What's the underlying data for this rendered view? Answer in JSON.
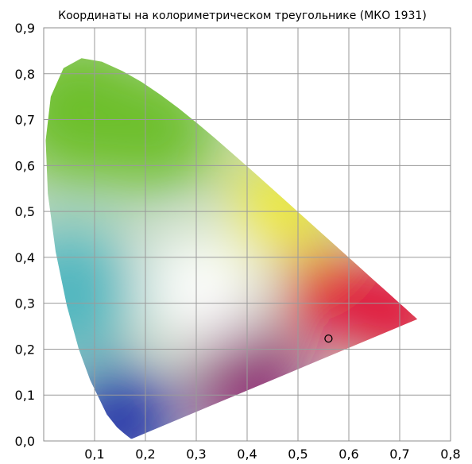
{
  "chart_data": {
    "type": "scatter",
    "title": "Координаты на колориметрическом треугольнике (МКО 1931)",
    "xlabel": "",
    "ylabel": "",
    "xlim": [
      0.0,
      0.8
    ],
    "ylim": [
      0.0,
      0.9
    ],
    "x_tick_labels": [
      "0,1",
      "0,2",
      "0,3",
      "0,4",
      "0,5",
      "0,6",
      "0,7",
      "0,8"
    ],
    "x_tick_values": [
      0.1,
      0.2,
      0.3,
      0.4,
      0.5,
      0.6,
      0.7,
      0.8
    ],
    "y_tick_labels": [
      "0,0",
      "0,1",
      "0,2",
      "0,3",
      "0,4",
      "0,5",
      "0,6",
      "0,7",
      "0,8",
      "0,9"
    ],
    "y_tick_values": [
      0.0,
      0.1,
      0.2,
      0.3,
      0.4,
      0.5,
      0.6,
      0.7,
      0.8,
      0.9
    ],
    "grid": true,
    "background": "CIE 1931 chromaticity diagram (spectral locus gamut)",
    "points": [
      {
        "x": 0.56,
        "y": 0.223
      }
    ],
    "marker": {
      "shape": "open-circle",
      "color": "#000000"
    }
  },
  "colors": {
    "red": "#e4002a",
    "yellow": "#f2ea1e",
    "green": "#6dbf2a",
    "cyan": "#4fb6c0",
    "blue": "#1a2ea8",
    "purple": "#8b0a6e",
    "white": "#ffffff",
    "grid": "#9a9a9a"
  }
}
